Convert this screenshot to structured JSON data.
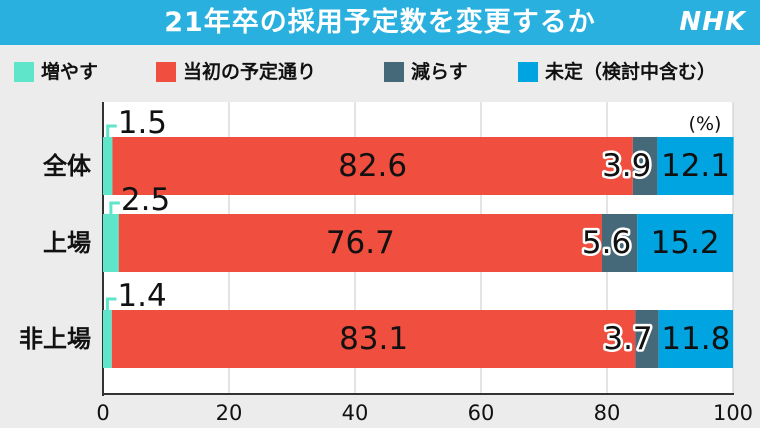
{
  "header": {
    "title": "21年卒の採用予定数を変更するか",
    "logo": "NHK",
    "background": "#2ab0df"
  },
  "legend": [
    {
      "label": "増やす",
      "color": "#5fe5c9"
    },
    {
      "label": "当初の予定通り",
      "color": "#f04e3e"
    },
    {
      "label": "減らす",
      "color": "#46697a"
    },
    {
      "label": "未定（検討中含む）",
      "color": "#00a4e1"
    }
  ],
  "chart_data": {
    "type": "bar",
    "orientation": "horizontal",
    "stacked": true,
    "unit_label": "(%)",
    "xlim": [
      0,
      100
    ],
    "xticks": [
      "0",
      "20",
      "40",
      "60",
      "80",
      "100"
    ],
    "grid": true,
    "legend_position": "top",
    "categories": [
      "全体",
      "上場",
      "非上場"
    ],
    "series": [
      {
        "name": "増やす",
        "color": "#5fe5c9",
        "values": [
          1.5,
          2.5,
          1.4
        ],
        "labels": [
          "1.5",
          "2.5",
          "1.4"
        ]
      },
      {
        "name": "当初の予定通り",
        "color": "#f04e3e",
        "values": [
          82.6,
          76.7,
          83.1
        ],
        "labels": [
          "82.6",
          "76.7",
          "83.1"
        ]
      },
      {
        "name": "減らす",
        "color": "#46697a",
        "values": [
          3.9,
          5.6,
          3.7
        ],
        "labels": [
          "3.9",
          "5.6",
          "3.7"
        ]
      },
      {
        "name": "未定（検討中含む）",
        "color": "#00a4e1",
        "values": [
          12.1,
          15.2,
          11.8
        ],
        "labels": [
          "12.1",
          "15.2",
          "11.8"
        ]
      }
    ]
  }
}
